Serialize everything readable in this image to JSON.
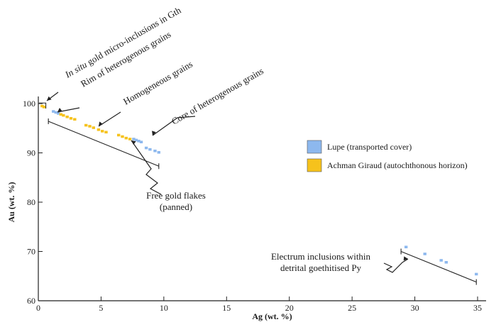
{
  "chart_data": {
    "type": "scatter",
    "xlabel": "Ag (wt. %)",
    "ylabel": "Au (wt. %)",
    "xlim": [
      0,
      35
    ],
    "ylim": [
      60,
      100
    ],
    "x_ticks": [
      0,
      5,
      10,
      15,
      20,
      25,
      30,
      35
    ],
    "y_ticks": [
      60,
      70,
      80,
      90,
      100
    ],
    "grid": false,
    "legend_position": "right",
    "series": [
      {
        "name": "Lupe (transported cover)",
        "color": "#8db8ee",
        "points": [
          [
            1.2,
            98.4
          ],
          [
            1.4,
            98.2
          ],
          [
            1.6,
            98.0
          ],
          [
            7.6,
            92.8
          ],
          [
            7.8,
            92.6
          ],
          [
            8.0,
            92.4
          ],
          [
            8.2,
            92.2
          ],
          [
            8.6,
            91.0
          ],
          [
            8.9,
            90.7
          ],
          [
            9.3,
            90.4
          ],
          [
            9.6,
            90.1
          ],
          [
            29.3,
            70.9
          ],
          [
            30.8,
            69.5
          ],
          [
            32.1,
            68.2
          ],
          [
            32.5,
            67.8
          ],
          [
            34.9,
            65.4
          ]
        ]
      },
      {
        "name": "Achman Giraud (autochthonous horizon)",
        "color": "#f6c21c",
        "points": [
          [
            0.3,
            99.5
          ],
          [
            0.45,
            99.3
          ],
          [
            1.8,
            97.8
          ],
          [
            2.0,
            97.6
          ],
          [
            2.3,
            97.3
          ],
          [
            2.6,
            97.0
          ],
          [
            2.9,
            96.8
          ],
          [
            3.8,
            95.6
          ],
          [
            4.1,
            95.4
          ],
          [
            4.4,
            95.1
          ],
          [
            4.8,
            94.7
          ],
          [
            5.1,
            94.4
          ],
          [
            5.4,
            94.2
          ],
          [
            6.4,
            93.6
          ],
          [
            6.7,
            93.3
          ],
          [
            7.0,
            93.0
          ],
          [
            7.3,
            92.8
          ]
        ]
      }
    ],
    "legend": [
      {
        "label": "Lupe (transported cover)",
        "color": "#8db8ee"
      },
      {
        "label": "Achman Giraud (autochthonous horizon)",
        "color": "#f6c21c"
      }
    ],
    "ranges": [
      {
        "x1": 0.8,
        "y1": 96.4,
        "x2": 9.6,
        "y2": 87.3
      },
      {
        "x1": 28.9,
        "y1": 70.0,
        "x2": 34.9,
        "y2": 63.8
      }
    ],
    "annotations": [
      {
        "lines": [
          {
            "segments": [
              {
                "text": "In situ",
                "italic": true
              },
              {
                "text": " gold micro-inclusions in Gth"
              }
            ]
          }
        ],
        "rotate": -30
      },
      {
        "lines": [
          {
            "segments": [
              {
                "text": "Rim of heterogenous grains"
              }
            ]
          }
        ],
        "rotate": -30
      },
      {
        "lines": [
          {
            "segments": [
              {
                "text": "Homogeneous grains"
              }
            ]
          }
        ],
        "rotate": -30
      },
      {
        "lines": [
          {
            "segments": [
              {
                "text": "Core of heterogenous grains"
              }
            ]
          }
        ],
        "rotate": -30
      },
      {
        "lines": [
          {
            "segments": [
              {
                "text": "Free gold flakes"
              }
            ]
          },
          {
            "segments": [
              {
                "text": "(panned)"
              }
            ]
          }
        ]
      },
      {
        "lines": [
          {
            "segments": [
              {
                "text": "Electrum inclusions within"
              }
            ]
          },
          {
            "segments": [
              {
                "text": "detrital goethitised Py"
              }
            ]
          }
        ]
      }
    ]
  }
}
